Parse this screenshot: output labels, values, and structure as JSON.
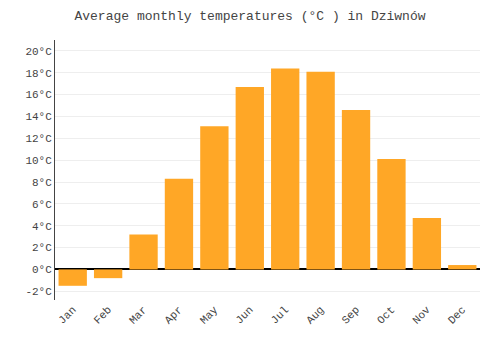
{
  "chart_data": {
    "type": "bar",
    "title": "Average monthly temperatures (°C ) in Dziwnów",
    "categories": [
      "Jan",
      "Feb",
      "Mar",
      "Apr",
      "May",
      "Jun",
      "Jul",
      "Aug",
      "Sep",
      "Oct",
      "Nov",
      "Dec"
    ],
    "values": [
      -1.5,
      -0.8,
      3.2,
      8.3,
      13.1,
      16.7,
      18.4,
      18.1,
      14.6,
      10.1,
      4.7,
      0.4
    ],
    "color": "#FFA726",
    "ylim": [
      -2.8,
      21.0
    ],
    "yticks": [
      {
        "value": -2,
        "label": "-2°C"
      },
      {
        "value": 0,
        "label": "0°C"
      },
      {
        "value": 2,
        "label": "2°C"
      },
      {
        "value": 4,
        "label": "4°C"
      },
      {
        "value": 6,
        "label": "6°C"
      },
      {
        "value": 8,
        "label": "8°C"
      },
      {
        "value": 10,
        "label": "10°C"
      },
      {
        "value": 12,
        "label": "12°C"
      },
      {
        "value": 14,
        "label": "14°C"
      },
      {
        "value": 16,
        "label": "16°C"
      },
      {
        "value": 18,
        "label": "18°C"
      },
      {
        "value": 20,
        "label": "20°C"
      }
    ],
    "grid": true
  }
}
